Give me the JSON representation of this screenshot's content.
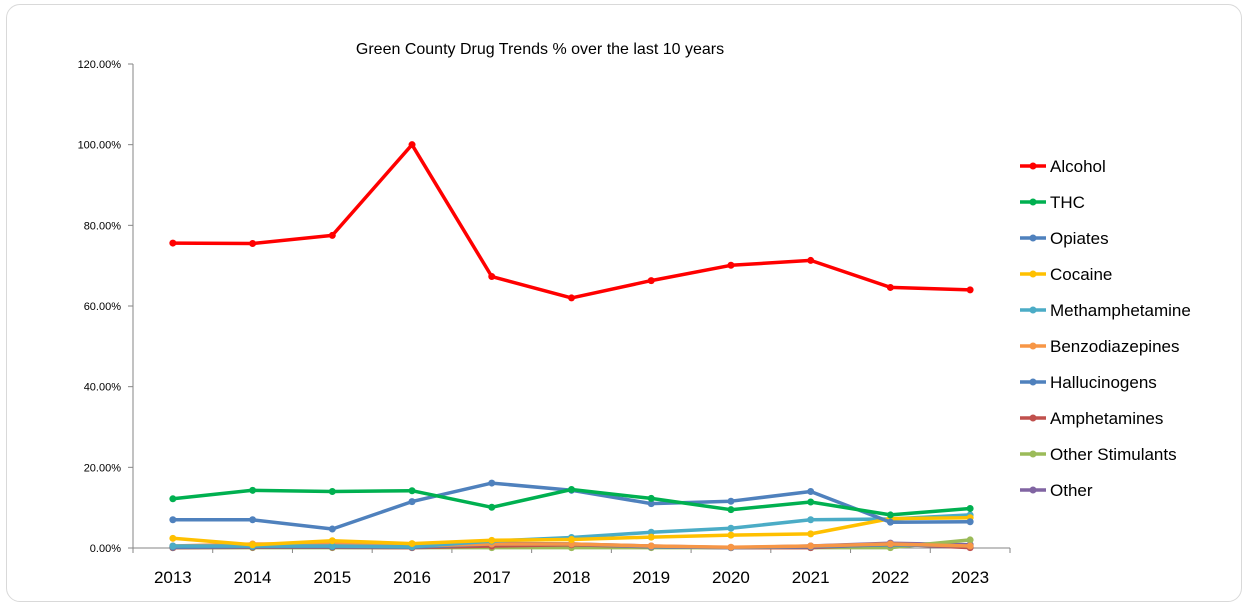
{
  "chart_data": {
    "type": "line",
    "title": "Green County Drug Trends % over the last 10 years",
    "xlabel": "",
    "ylabel": "",
    "ylim": [
      0,
      1.2
    ],
    "yticks": [
      "0.00%",
      "20.00%",
      "40.00%",
      "60.00%",
      "80.00%",
      "100.00%",
      "120.00%"
    ],
    "grid": false,
    "legend": "right",
    "x": [
      "2013",
      "2014",
      "2015",
      "2016",
      "2017",
      "2018",
      "2019",
      "2020",
      "2021",
      "2022",
      "2023"
    ],
    "series": [
      {
        "name": "Alcohol",
        "color": "#ff0000",
        "values": [
          0.756,
          0.755,
          0.775,
          1.0,
          0.673,
          0.62,
          0.663,
          0.701,
          0.713,
          0.646,
          0.64
        ]
      },
      {
        "name": "THC",
        "color": "#00b050",
        "values": [
          0.122,
          0.143,
          0.14,
          0.142,
          0.101,
          0.145,
          0.123,
          0.095,
          0.114,
          0.082,
          0.098
        ]
      },
      {
        "name": "Opiates",
        "color": "#4f81bd",
        "values": [
          0.07,
          0.07,
          0.047,
          0.115,
          0.161,
          0.143,
          0.11,
          0.116,
          0.14,
          0.064,
          0.065
        ]
      },
      {
        "name": "Cocaine",
        "color": "#ffc000",
        "values": [
          0.024,
          0.008,
          0.018,
          0.011,
          0.019,
          0.021,
          0.027,
          0.032,
          0.035,
          0.073,
          0.075
        ]
      },
      {
        "name": "Methamphetamine",
        "color": "#4bacc6",
        "values": [
          0.005,
          0.005,
          0.005,
          0.003,
          0.017,
          0.026,
          0.039,
          0.049,
          0.07,
          0.072,
          0.082
        ]
      },
      {
        "name": "Benzodiazepines",
        "color": "#f79646",
        "values": [
          0.005,
          0.01,
          0.01,
          0.005,
          0.01,
          0.01,
          0.005,
          0.002,
          0.005,
          0.01,
          0.005
        ]
      },
      {
        "name": "Hallucinogens",
        "color": "#4f81bd",
        "values": [
          0.002,
          0.003,
          0.003,
          0.002,
          0.01,
          0.01,
          0.003,
          0.001,
          0.003,
          0.008,
          0.005
        ]
      },
      {
        "name": "Amphetamines",
        "color": "#c0504d",
        "values": [
          0.001,
          0.002,
          0.002,
          0.001,
          0.005,
          0.008,
          0.003,
          0.001,
          0.001,
          0.01,
          0.001
        ]
      },
      {
        "name": "Other Stimulants",
        "color": "#9bbb59",
        "values": [
          0.001,
          0.001,
          0.001,
          0.001,
          0.001,
          0.001,
          0.001,
          0.001,
          0.001,
          0.001,
          0.02
        ]
      },
      {
        "name": "Other",
        "color": "#8064a2",
        "values": [
          0.001,
          0.003,
          0.003,
          0.002,
          0.012,
          0.01,
          0.005,
          0.001,
          0.005,
          0.012,
          0.008
        ]
      }
    ]
  }
}
